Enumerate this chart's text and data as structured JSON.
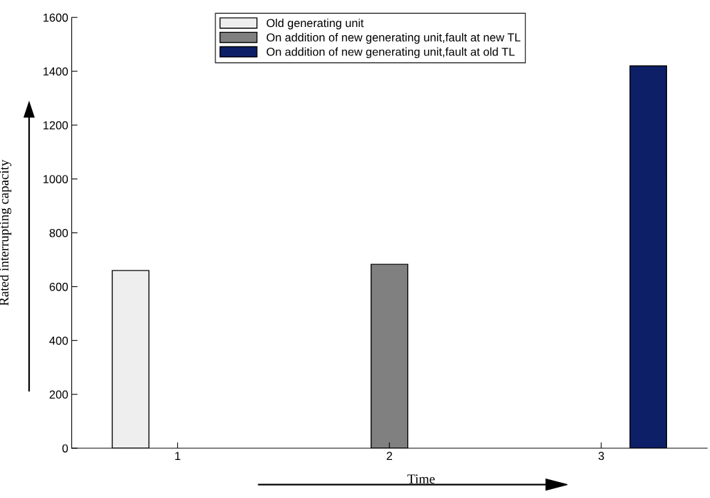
{
  "chart_data": {
    "type": "bar",
    "xlabel": "Time",
    "ylabel": "Rated interrupting capacity",
    "categories": [
      "1",
      "2",
      "3"
    ],
    "series": [
      {
        "name": "Old generating unit",
        "color": "#eeeeee",
        "values": [
          660,
          null,
          null
        ]
      },
      {
        "name": "On addition of new generating unit,fault at new TL",
        "color": "#808080",
        "values": [
          null,
          683,
          null
        ]
      },
      {
        "name": "On addition of new generating unit,fault at old TL",
        "color": "#0d1f66",
        "values": [
          null,
          null,
          1420
        ]
      }
    ],
    "ylim": [
      0,
      1600
    ],
    "yticks": [
      0,
      200,
      400,
      600,
      800,
      1000,
      1200,
      1400,
      1600
    ],
    "grid": false,
    "legend": "top"
  }
}
